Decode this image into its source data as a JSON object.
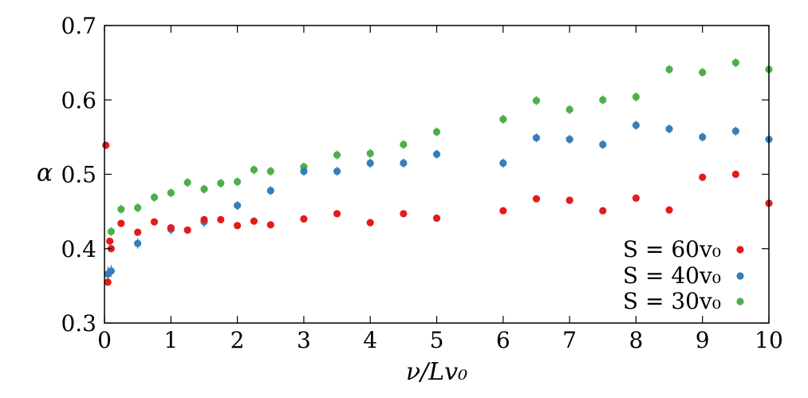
{
  "chart_data": {
    "type": "scatter",
    "xlabel": "ν/Lv₀",
    "ylabel": "α",
    "xlim": [
      0,
      10
    ],
    "ylim": [
      0.3,
      0.7
    ],
    "xticks": [
      "0",
      "1",
      "2",
      "3",
      "4",
      "5",
      "6",
      "7",
      "8",
      "9",
      "10"
    ],
    "yticks": [
      "0.3",
      "0.4",
      "0.5",
      "0.6",
      "0.7"
    ],
    "grid": false,
    "legend": "bottom-right",
    "error_bars": true,
    "series": [
      {
        "name": "S = 60v₀",
        "color": "#e41a1c",
        "x": [
          0.02,
          0.05,
          0.08,
          0.1,
          0.25,
          0.5,
          0.75,
          1.0,
          1.25,
          1.5,
          1.75,
          2.0,
          2.25,
          2.5,
          3.0,
          3.5,
          4.0,
          4.5,
          5.0,
          6.0,
          6.5,
          7.0,
          7.5,
          8.0,
          8.5,
          9.0,
          9.5,
          10.0
        ],
        "y": [
          0.539,
          0.355,
          0.41,
          0.4,
          0.434,
          0.422,
          0.436,
          0.428,
          0.425,
          0.439,
          0.439,
          0.431,
          0.437,
          0.432,
          0.44,
          0.447,
          0.435,
          0.447,
          0.441,
          0.451,
          0.467,
          0.465,
          0.451,
          0.468,
          0.452,
          0.496,
          0.5,
          0.461
        ],
        "err": [
          0.004,
          0.004,
          0.004,
          0.004,
          0.004,
          0.004,
          0.004,
          0.004,
          0.004,
          0.004,
          0.004,
          0.004,
          0.004,
          0.004,
          0.004,
          0.004,
          0.004,
          0.004,
          0.004,
          0.004,
          0.004,
          0.004,
          0.004,
          0.004,
          0.004,
          0.004,
          0.004,
          0.004
        ]
      },
      {
        "name": "S = 40v₀",
        "color": "#377eb8",
        "x": [
          0.05,
          0.1,
          0.5,
          1.0,
          1.5,
          2.0,
          2.5,
          3.0,
          3.5,
          4.0,
          4.5,
          5.0,
          6.0,
          6.5,
          7.0,
          7.5,
          8.0,
          8.5,
          9.0,
          9.5,
          10.0
        ],
        "y": [
          0.366,
          0.37,
          0.407,
          0.426,
          0.436,
          0.458,
          0.478,
          0.504,
          0.504,
          0.515,
          0.515,
          0.527,
          0.515,
          0.549,
          0.547,
          0.54,
          0.566,
          0.561,
          0.55,
          0.558,
          0.547
        ],
        "err": [
          0.01,
          0.008,
          0.007,
          0.007,
          0.007,
          0.006,
          0.006,
          0.006,
          0.006,
          0.006,
          0.006,
          0.006,
          0.006,
          0.006,
          0.006,
          0.006,
          0.006,
          0.006,
          0.006,
          0.006,
          0.006
        ]
      },
      {
        "name": "S = 30v₀",
        "color": "#4daf4a",
        "x": [
          0.1,
          0.25,
          0.5,
          0.75,
          1.0,
          1.25,
          1.5,
          1.75,
          2.0,
          2.25,
          2.5,
          3.0,
          3.5,
          4.0,
          4.5,
          5.0,
          6.0,
          6.5,
          7.0,
          7.5,
          8.0,
          8.5,
          9.0,
          9.5,
          10.0
        ],
        "y": [
          0.423,
          0.453,
          0.455,
          0.469,
          0.475,
          0.489,
          0.48,
          0.488,
          0.49,
          0.506,
          0.504,
          0.51,
          0.526,
          0.528,
          0.54,
          0.557,
          0.574,
          0.599,
          0.587,
          0.6,
          0.604,
          0.641,
          0.637,
          0.65,
          0.641
        ]
      }
    ]
  }
}
